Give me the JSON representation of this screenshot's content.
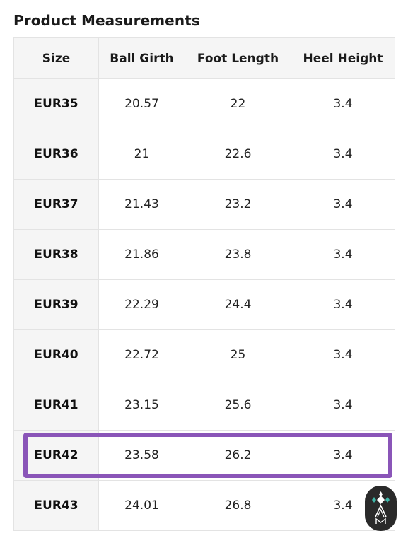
{
  "title": "Product Measurements",
  "table": {
    "headers": [
      "Size",
      "Ball Girth",
      "Foot Length",
      "Heel Height"
    ],
    "rows": [
      {
        "size": "EUR35",
        "ball_girth": "20.57",
        "foot_length": "22",
        "heel_height": "3.4"
      },
      {
        "size": "EUR36",
        "ball_girth": "21",
        "foot_length": "22.6",
        "heel_height": "3.4"
      },
      {
        "size": "EUR37",
        "ball_girth": "21.43",
        "foot_length": "23.2",
        "heel_height": "3.4"
      },
      {
        "size": "EUR38",
        "ball_girth": "21.86",
        "foot_length": "23.8",
        "heel_height": "3.4"
      },
      {
        "size": "EUR39",
        "ball_girth": "22.29",
        "foot_length": "24.4",
        "heel_height": "3.4"
      },
      {
        "size": "EUR40",
        "ball_girth": "22.72",
        "foot_length": "25",
        "heel_height": "3.4"
      },
      {
        "size": "EUR41",
        "ball_girth": "23.15",
        "foot_length": "25.6",
        "heel_height": "3.4"
      },
      {
        "size": "EUR42",
        "ball_girth": "23.58",
        "foot_length": "26.2",
        "heel_height": "3.4"
      },
      {
        "size": "EUR43",
        "ball_girth": "24.01",
        "foot_length": "26.8",
        "heel_height": "3.4"
      }
    ]
  },
  "highlighted_row": "EUR42",
  "colors": {
    "highlight": "#8a55b8",
    "header_bg": "#f5f5f5",
    "border": "#e3e3e3",
    "badge_bg": "#2a2a2a",
    "badge_accent": "#3fb6a8"
  },
  "icons": {
    "badge": "brand-logo-icon"
  }
}
